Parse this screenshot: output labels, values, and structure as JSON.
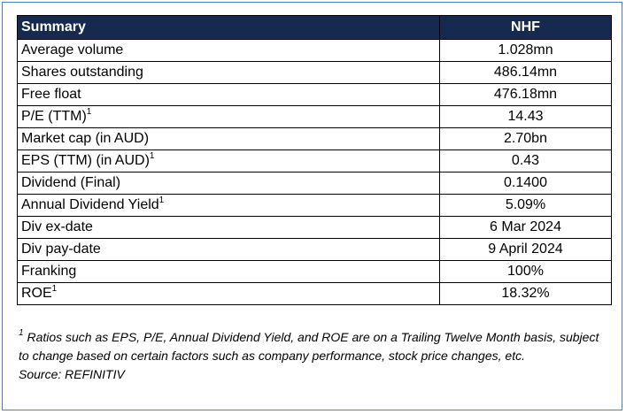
{
  "table": {
    "header": {
      "label": "Summary",
      "value": "NHF"
    },
    "rows": [
      {
        "label": "Average volume",
        "sup": "",
        "value": "1.028mn"
      },
      {
        "label": "Shares outstanding",
        "sup": "",
        "value": "486.14mn"
      },
      {
        "label": "Free float",
        "sup": "",
        "value": "476.18mn"
      },
      {
        "label": "P/E (TTM)",
        "sup": "1",
        "value": "14.43"
      },
      {
        "label": "Market cap (in AUD)",
        "sup": "",
        "value": "2.70bn"
      },
      {
        "label": "EPS (TTM) (in AUD)",
        "sup": "1",
        "value": "0.43"
      },
      {
        "label": "Dividend (Final)",
        "sup": "",
        "value": "0.1400"
      },
      {
        "label": "Annual Dividend Yield",
        "sup": "1",
        "value": "5.09%"
      },
      {
        "label": "Div ex-date",
        "sup": "",
        "value": "6 Mar 2024"
      },
      {
        "label": "Div pay-date",
        "sup": "",
        "value": "9 April 2024"
      },
      {
        "label": "Franking",
        "sup": "",
        "value": "100%"
      },
      {
        "label": "ROE",
        "sup": "1",
        "value": "18.32%"
      }
    ]
  },
  "footnote": {
    "marker": "1",
    "text": "Ratios such as EPS, P/E, Annual Dividend Yield, and ROE are on a Trailing Twelve Month basis, subject to change based on certain factors such as company performance, stock price changes, etc.",
    "source": "Source: REFINITIV"
  }
}
